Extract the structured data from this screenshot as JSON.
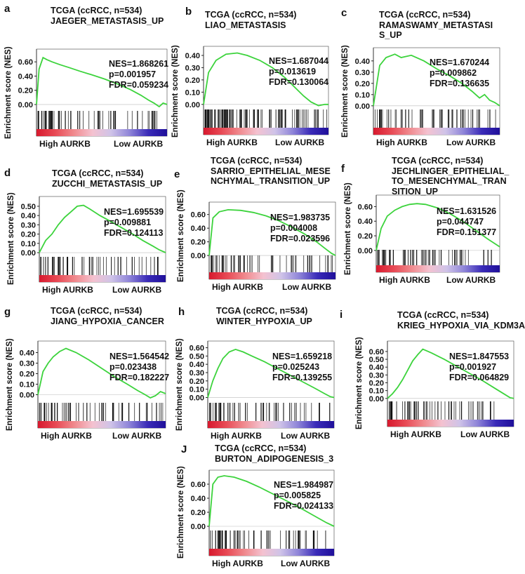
{
  "chart_data": [
    {
      "type": "line",
      "letter": "a",
      "title": [
        "TCGA (ccRCC, n=534)",
        "JAEGER_METASTASIS_UP"
      ],
      "ylabel": "Enrichment score (NES)",
      "yticks": [
        "0.60",
        "0.40",
        "0.20",
        "0.00"
      ],
      "ylim": [
        -0.05,
        0.72
      ],
      "stats": [
        "NES=1.868261",
        "p=0.001957",
        "FDR=0.059234"
      ],
      "xlabel_left": "High AURKB",
      "xlabel_right": "Low AURKB",
      "x": [
        0,
        0.02,
        0.05,
        0.08,
        0.12,
        0.18,
        0.25,
        0.33,
        0.42,
        0.52,
        0.62,
        0.72,
        0.8,
        0.86,
        0.9,
        0.94,
        0.97,
        1
      ],
      "y": [
        0.0,
        0.5,
        0.66,
        0.63,
        0.6,
        0.56,
        0.52,
        0.47,
        0.42,
        0.36,
        0.29,
        0.21,
        0.13,
        0.06,
        0.02,
        -0.03,
        0.02,
        0.0
      ]
    },
    {
      "type": "line",
      "letter": "b",
      "title": [
        "TCGA (ccRCC, n=534)",
        "LIAO_METASTASIS"
      ],
      "ylabel": "Enrichment score (NES)",
      "yticks": [
        "0.40",
        "0.30",
        "0.20",
        "0.10",
        "0.00"
      ],
      "ylim": [
        -0.03,
        0.44
      ],
      "stats": [
        "NES=1.687044",
        "p=0.013619",
        "FDR=0.130064"
      ],
      "xlabel_left": "High AURKB",
      "xlabel_right": "Low AURKB",
      "x": [
        0,
        0.04,
        0.1,
        0.18,
        0.27,
        0.35,
        0.45,
        0.55,
        0.65,
        0.73,
        0.8,
        0.86,
        0.92,
        0.97,
        1
      ],
      "y": [
        0.0,
        0.26,
        0.36,
        0.41,
        0.42,
        0.4,
        0.36,
        0.3,
        0.22,
        0.14,
        0.07,
        0.02,
        -0.01,
        0.0,
        0.0
      ]
    },
    {
      "type": "line",
      "letter": "c",
      "title": [
        "TCGA (ccRCC, n=534)",
        "RAMASWAMY_METASTASI",
        "S_UP"
      ],
      "ylabel": "Enrichment score (NES)",
      "yticks": [
        "0.40",
        "0.30",
        "0.20",
        "0.10",
        "0.00"
      ],
      "ylim": [
        -0.02,
        0.48
      ],
      "stats": [
        "NES=1.670244",
        "p=0.009862",
        "FDR=0.136635"
      ],
      "xlabel_left": "High AURKB",
      "xlabel_right": "Low AURKB",
      "x": [
        0,
        0.05,
        0.1,
        0.17,
        0.22,
        0.3,
        0.4,
        0.5,
        0.6,
        0.7,
        0.78,
        0.84,
        0.88,
        0.92,
        0.96,
        1
      ],
      "y": [
        0.0,
        0.36,
        0.43,
        0.46,
        0.43,
        0.45,
        0.4,
        0.33,
        0.27,
        0.2,
        0.13,
        0.07,
        0.1,
        0.05,
        0.03,
        0.0
      ]
    },
    {
      "type": "line",
      "letter": "d",
      "title": [
        "TCGA (ccRCC, n=534)",
        "ZUCCHI_METASTASIS_UP"
      ],
      "ylabel": "Enrichment score (NES)",
      "yticks": [
        "0.50",
        "0.40",
        "0.30",
        "0.20",
        "0.10",
        "0.00"
      ],
      "ylim": [
        -0.03,
        0.56
      ],
      "stats": [
        "NES=1.695539",
        "p=0.009881",
        "FDR=0.124113"
      ],
      "xlabel_left": "High AURKB",
      "xlabel_right": "Low AURKB",
      "x": [
        0,
        0.05,
        0.1,
        0.15,
        0.2,
        0.25,
        0.3,
        0.35,
        0.4,
        0.48,
        0.56,
        0.65,
        0.74,
        0.82,
        0.9,
        0.95,
        1
      ],
      "y": [
        0.0,
        0.13,
        0.2,
        0.3,
        0.38,
        0.44,
        0.5,
        0.51,
        0.47,
        0.4,
        0.34,
        0.27,
        0.2,
        0.13,
        0.07,
        0.03,
        0.0
      ]
    },
    {
      "type": "line",
      "letter": "e",
      "title": [
        "TCGA (ccRCC, n=534)",
        "SARRIO_EPITHELIAL_MESE",
        "NCHYMAL_TRANSITION_UP"
      ],
      "ylabel": "Enrichment score (NES)",
      "yticks": [
        "0.60",
        "0.40",
        "0.20",
        "0.00"
      ],
      "ylim": [
        -0.04,
        0.72
      ],
      "stats": [
        "NES=1.983735",
        "p=0.004008",
        "FDR=0.023596"
      ],
      "xlabel_left": "High AURKB",
      "xlabel_right": "Low AURKB",
      "x": [
        0,
        0.03,
        0.08,
        0.15,
        0.25,
        0.35,
        0.45,
        0.55,
        0.65,
        0.75,
        0.85,
        0.92,
        0.97,
        1
      ],
      "y": [
        0.0,
        0.55,
        0.64,
        0.67,
        0.66,
        0.63,
        0.58,
        0.51,
        0.42,
        0.32,
        0.2,
        0.1,
        0.03,
        0.0
      ]
    },
    {
      "type": "line",
      "letter": "f",
      "title": [
        "TCGA (ccRCC, n=534)",
        "JECHLINGER_EPITHELIAL_",
        "TO_MESENCHYMAL_TRAN",
        "SITION_UP"
      ],
      "ylabel": "Enrichment score (NES)",
      "yticks": [
        "0.60",
        "0.40",
        "0.20",
        "0.00"
      ],
      "ylim": [
        -0.03,
        0.7
      ],
      "stats": [
        "NES=1.631526",
        "p=0.044747",
        "FDR=0.151377"
      ],
      "xlabel_left": "High AURKB",
      "xlabel_right": "Low AURKB",
      "x": [
        0,
        0.04,
        0.09,
        0.15,
        0.21,
        0.27,
        0.33,
        0.4,
        0.5,
        0.6,
        0.7,
        0.8,
        0.9,
        1
      ],
      "y": [
        0.0,
        0.3,
        0.47,
        0.55,
        0.6,
        0.63,
        0.64,
        0.63,
        0.58,
        0.5,
        0.4,
        0.28,
        0.16,
        0.05
      ]
    },
    {
      "type": "line",
      "letter": "g",
      "title": [
        "TCGA (ccRCC, n=534)",
        "JIANG_HYPOXIA_CANCER"
      ],
      "ylabel": "Enrichment score (NES)",
      "yticks": [
        "0.40",
        "0.30",
        "0.20",
        "0.10",
        "0.00"
      ],
      "ylim": [
        -0.05,
        0.47
      ],
      "stats": [
        "NES=1.564542",
        "p=0.023438",
        "FDR=0.182227"
      ],
      "xlabel_left": "High AURKB",
      "xlabel_right": "Low AURKB",
      "x": [
        0,
        0.04,
        0.08,
        0.12,
        0.17,
        0.22,
        0.3,
        0.4,
        0.5,
        0.6,
        0.7,
        0.78,
        0.84,
        0.88,
        0.92,
        0.96,
        1
      ],
      "y": [
        0.0,
        0.22,
        0.3,
        0.36,
        0.41,
        0.44,
        0.4,
        0.33,
        0.25,
        0.17,
        0.1,
        0.04,
        0.0,
        -0.03,
        -0.01,
        0.03,
        0.01
      ]
    },
    {
      "type": "line",
      "letter": "h",
      "title": [
        "TCGA (ccRCC, n=534)",
        "WINTER_HYPOXIA_UP"
      ],
      "ylabel": "Enrichment score (NES)",
      "yticks": [
        "0.60",
        "0.50",
        "0.40",
        "0.30",
        "0.20",
        "0.10",
        "0.00"
      ],
      "ylim": [
        -0.03,
        0.63
      ],
      "stats": [
        "NES=1.659218",
        "p=0.025243",
        "FDR=0.139255"
      ],
      "xlabel_left": "High AURKB",
      "xlabel_right": "Low AURKB",
      "x": [
        0,
        0.04,
        0.08,
        0.12,
        0.17,
        0.22,
        0.28,
        0.35,
        0.45,
        0.55,
        0.65,
        0.75,
        0.85,
        0.92,
        0.97,
        1
      ],
      "y": [
        0.0,
        0.2,
        0.35,
        0.47,
        0.55,
        0.58,
        0.55,
        0.5,
        0.43,
        0.35,
        0.27,
        0.19,
        0.11,
        0.05,
        0.01,
        0.0
      ]
    },
    {
      "type": "line",
      "letter": "i",
      "title": [
        "TCGA (ccRCC, n=534)",
        "KRIEG_HYPOXIA_VIA_KDM3A"
      ],
      "ylabel": "Enrichment score (NES)",
      "yticks": [
        "0.60",
        "0.50",
        "0.40",
        "0.30",
        "0.20",
        "0.10",
        "0.00"
      ],
      "ylim": [
        -0.02,
        0.68
      ],
      "stats": [
        "NES=1.847553",
        "p=0.001927",
        "FDR=0.064829"
      ],
      "xlabel_left": "High AURKB",
      "xlabel_right": "Low AURKB",
      "x": [
        0,
        0.04,
        0.08,
        0.12,
        0.16,
        0.2,
        0.24,
        0.28,
        0.35,
        0.45,
        0.55,
        0.65,
        0.75,
        0.85,
        0.93,
        0.97,
        1
      ],
      "y": [
        0.0,
        0.06,
        0.14,
        0.24,
        0.36,
        0.48,
        0.56,
        0.63,
        0.58,
        0.5,
        0.41,
        0.32,
        0.23,
        0.13,
        0.05,
        0.01,
        0.0
      ]
    },
    {
      "type": "line",
      "letter": "J",
      "title": [
        "TCGA (ccRCC, n=534)",
        "BURTON_ADIPOGENESIS_3"
      ],
      "ylabel": "Enrichment score (NES)",
      "yticks": [
        "0.60",
        "0.40",
        "0.20",
        "0.00"
      ],
      "ylim": [
        -0.04,
        0.74
      ],
      "stats": [
        "NES=1.984987",
        "p=0.005825",
        "FDR=0.024133"
      ],
      "xlabel_left": "High AURKB",
      "xlabel_right": "Low AURKB",
      "x": [
        0,
        0.03,
        0.07,
        0.12,
        0.2,
        0.3,
        0.4,
        0.5,
        0.6,
        0.7,
        0.8,
        0.88,
        0.94,
        1
      ],
      "y": [
        0.0,
        0.6,
        0.7,
        0.72,
        0.7,
        0.64,
        0.56,
        0.47,
        0.38,
        0.29,
        0.19,
        0.11,
        0.05,
        0.0
      ]
    }
  ],
  "colors": {
    "curve": "#3cd33c",
    "hits": "#111111",
    "axis": "#222222",
    "gradient": [
      "#d7192e",
      "#e84a55",
      "#f08a8e",
      "#f4c2d0",
      "#cfc3e8",
      "#8e84d8",
      "#3a2bb8",
      "#1f0f9a"
    ]
  }
}
